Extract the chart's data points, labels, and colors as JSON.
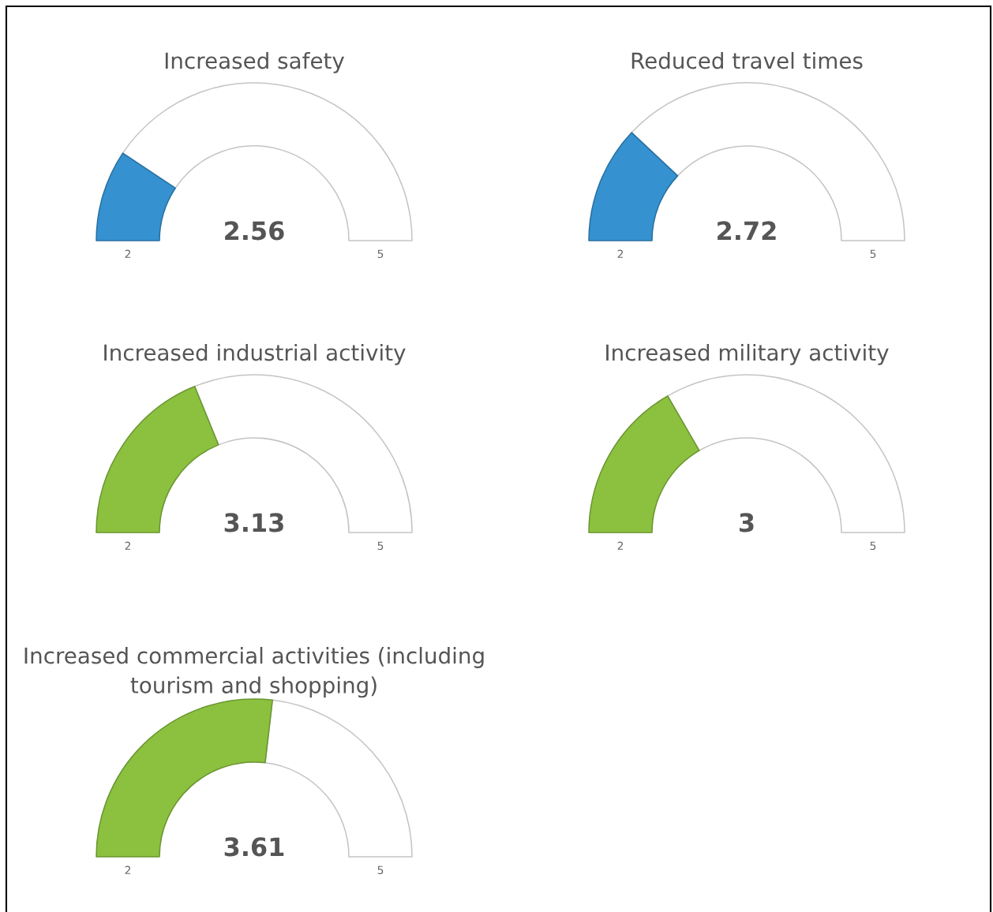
{
  "chart_data": [
    {
      "type": "donut",
      "title": "Increased safety",
      "categories": [
        null,
        null
      ],
      "values": [
        18.7,
        81.3
      ],
      "colors": [
        "#3591d0",
        "#ffffff"
      ],
      "annotations": [
        "2.56",
        "2",
        "5"
      ]
    },
    {
      "type": "donut",
      "title": "Reduced travel times",
      "categories": [
        null,
        null
      ],
      "values": [
        24,
        76
      ],
      "colors": [
        "#3591d0",
        "#ffffff"
      ],
      "annotations": [
        "2.72",
        "2",
        "5"
      ]
    },
    {
      "type": "donut",
      "title": "Increased industrial activity",
      "categories": [
        null,
        null
      ],
      "values": [
        37.7,
        62.3
      ],
      "colors": [
        "#8bc13f",
        "#ffffff"
      ],
      "annotations": [
        "3.13",
        "2",
        "5"
      ]
    },
    {
      "type": "donut",
      "title": "Increased military activity",
      "categories": [
        null,
        null
      ],
      "values": [
        33.3,
        66.7
      ],
      "colors": [
        "#8bc13f",
        "#ffffff"
      ],
      "annotations": [
        "3",
        "2",
        "5"
      ]
    },
    {
      "type": "donut",
      "title": "Increased commercial activities (including tourism and shopping)",
      "categories": [
        null,
        null
      ],
      "values": [
        53.7,
        46.3
      ],
      "colors": [
        "#8bc13f",
        "#ffffff"
      ],
      "annotations": [
        "3.61",
        "2",
        "5"
      ]
    }
  ]
}
